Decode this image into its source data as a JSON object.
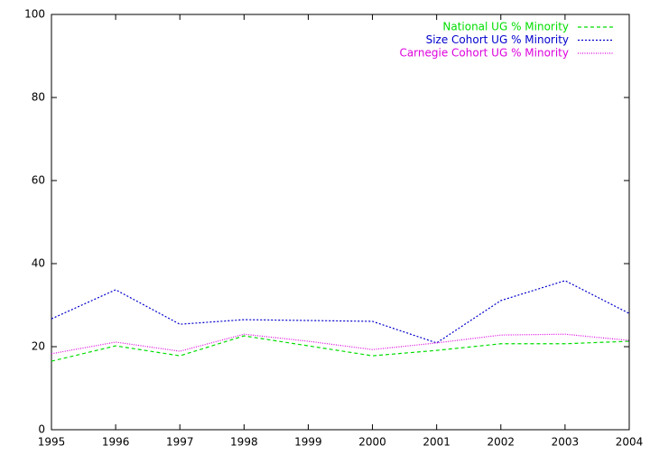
{
  "chart_data": {
    "type": "line",
    "x": [
      1995,
      1996,
      1997,
      1998,
      1999,
      2000,
      2001,
      2002,
      2003,
      2004
    ],
    "xlim": [
      1995,
      2004
    ],
    "xticks": [
      1995,
      1996,
      1997,
      1998,
      1999,
      2000,
      2001,
      2002,
      2003,
      2004
    ],
    "ylim": [
      0,
      100
    ],
    "yticks": [
      0,
      20,
      40,
      60,
      80,
      100
    ],
    "legend": "top-right",
    "series": [
      {
        "name": "National UG % Minority",
        "color": "#00dd00",
        "dash": "4,3",
        "values": [
          16.5,
          20.2,
          17.8,
          22.6,
          20.2,
          17.8,
          19.1,
          20.7,
          20.7,
          21.3
        ]
      },
      {
        "name": "Size Cohort UG % Minority",
        "color": "#0000cc",
        "dash": "2,2",
        "values": [
          26.7,
          33.7,
          25.4,
          26.5,
          26.3,
          26.1,
          20.9,
          31.1,
          35.9,
          28.0
        ]
      },
      {
        "name": "Carnegie Cohort UG % Minority",
        "color": "#dd00dd",
        "dash": "1,1.5",
        "values": [
          18.3,
          21.1,
          18.9,
          23.0,
          21.3,
          19.3,
          20.9,
          22.8,
          23.0,
          21.5
        ]
      }
    ]
  }
}
